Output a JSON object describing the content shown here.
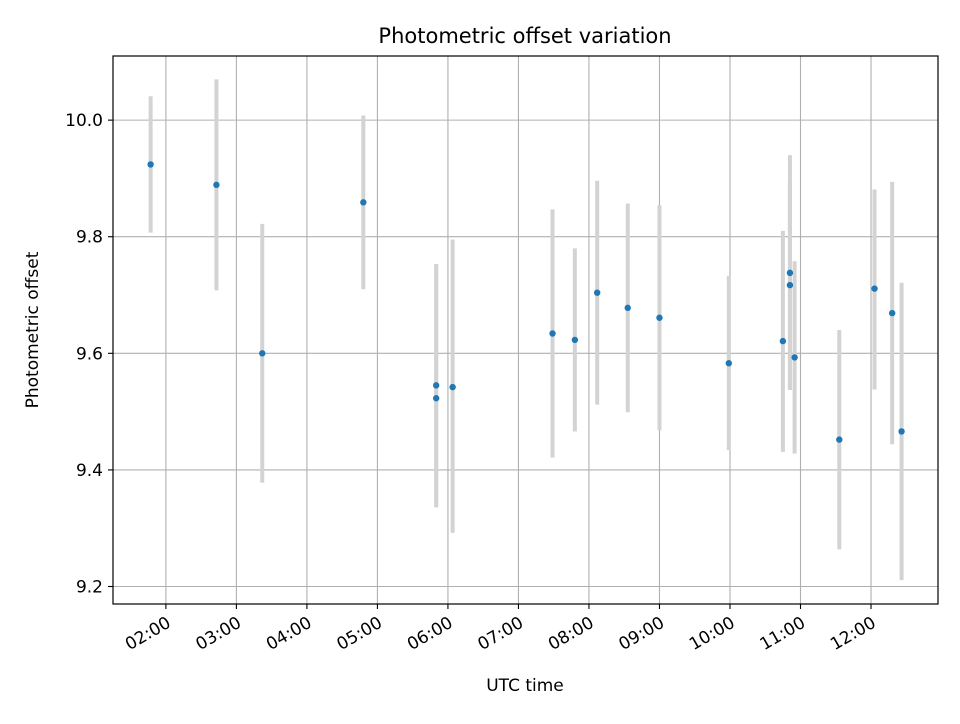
{
  "chart_data": {
    "type": "scatter",
    "title": "Photometric offset variation",
    "xlabel": "UTC time",
    "ylabel": "Photometric offset",
    "x_tick_labels": [
      "02:00",
      "03:00",
      "04:00",
      "05:00",
      "06:00",
      "07:00",
      "08:00",
      "09:00",
      "10:00",
      "11:00",
      "12:00"
    ],
    "y_tick_labels": [
      "9.2",
      "9.4",
      "9.6",
      "9.8",
      "10.0"
    ],
    "y_ticks": [
      9.2,
      9.4,
      9.6,
      9.8,
      10.0
    ],
    "xlim": [
      "01:15",
      "12:57"
    ],
    "ylim": [
      9.17,
      10.11
    ],
    "grid": true,
    "point_color": "#1f77b4",
    "errorbar_color": "#d3d3d3",
    "points": [
      {
        "x": "01:47",
        "y": 9.924,
        "ylow": 9.807,
        "yhigh": 10.041
      },
      {
        "x": "02:43",
        "y": 9.889,
        "ylow": 9.708,
        "yhigh": 10.07
      },
      {
        "x": "03:22",
        "y": 9.6,
        "ylow": 9.378,
        "yhigh": 9.822
      },
      {
        "x": "04:48",
        "y": 9.859,
        "ylow": 9.71,
        "yhigh": 10.008
      },
      {
        "x": "05:50",
        "y": 9.545,
        "ylow": 9.336,
        "yhigh": 9.753
      },
      {
        "x": "05:50",
        "y": 9.523,
        "ylow": 9.336,
        "yhigh": 9.753
      },
      {
        "x": "06:04",
        "y": 9.542,
        "ylow": 9.292,
        "yhigh": 9.795
      },
      {
        "x": "07:29",
        "y": 9.634,
        "ylow": 9.421,
        "yhigh": 9.847
      },
      {
        "x": "07:48",
        "y": 9.623,
        "ylow": 9.466,
        "yhigh": 9.78
      },
      {
        "x": "08:07",
        "y": 9.704,
        "ylow": 9.512,
        "yhigh": 9.896
      },
      {
        "x": "08:33",
        "y": 9.678,
        "ylow": 9.499,
        "yhigh": 9.857
      },
      {
        "x": "09:00",
        "y": 9.661,
        "ylow": 9.468,
        "yhigh": 9.854
      },
      {
        "x": "09:59",
        "y": 9.583,
        "ylow": 9.434,
        "yhigh": 9.733
      },
      {
        "x": "10:45",
        "y": 9.621,
        "ylow": 9.431,
        "yhigh": 9.81
      },
      {
        "x": "10:51",
        "y": 9.738,
        "ylow": 9.537,
        "yhigh": 9.94
      },
      {
        "x": "10:51",
        "y": 9.717,
        "ylow": 9.537,
        "yhigh": 9.897
      },
      {
        "x": "10:55",
        "y": 9.593,
        "ylow": 9.428,
        "yhigh": 9.758
      },
      {
        "x": "11:33",
        "y": 9.452,
        "ylow": 9.264,
        "yhigh": 9.64
      },
      {
        "x": "12:03",
        "y": 9.711,
        "ylow": 9.538,
        "yhigh": 9.881
      },
      {
        "x": "12:18",
        "y": 9.669,
        "ylow": 9.444,
        "yhigh": 9.894
      },
      {
        "x": "12:26",
        "y": 9.466,
        "ylow": 9.211,
        "yhigh": 9.721
      }
    ]
  }
}
